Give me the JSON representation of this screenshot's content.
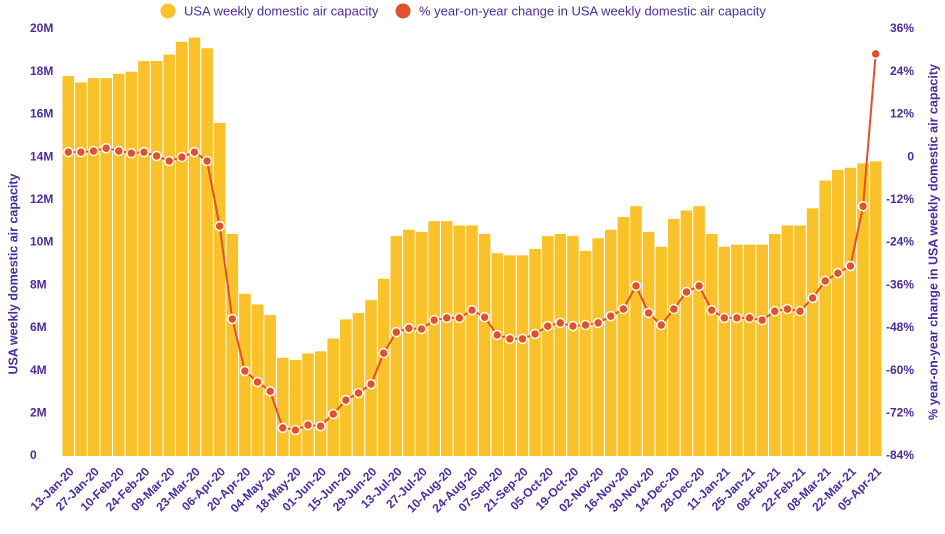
{
  "chart_data": {
    "type": "bar",
    "y_label": "USA weekly domestic air capacity",
    "y2_label": "% year-on-year change in USA weekly domestic air capacity",
    "categories": [
      "13-Jan-20",
      null,
      "27-Jan-20",
      null,
      "10-Feb-20",
      null,
      "24-Feb-20",
      null,
      "09-Mar-20",
      null,
      "23-Mar-20",
      null,
      "06-Apr-20",
      null,
      "20-Apr-20",
      null,
      "04-May-20",
      null,
      "18-May-20",
      null,
      "01-Jun-20",
      null,
      "15-Jun-20",
      null,
      "29-Jun-20",
      null,
      "13-Jul-20",
      null,
      "27-Jul-20",
      null,
      "10-Aug-20",
      null,
      "24-Aug-20",
      null,
      "07-Sep-20",
      null,
      "21-Sep-20",
      null,
      "05-Oct-20",
      null,
      "19-Oct-20",
      null,
      "02-Nov-20",
      null,
      "16-Nov-20",
      null,
      "30-Nov-20",
      null,
      "14-Dec-20",
      null,
      "28-Dec-20",
      null,
      "11-Jan-21",
      null,
      "25-Jan-21",
      null,
      "08-Feb-21",
      null,
      "22-Feb-21",
      null,
      "08-Mar-21",
      null,
      "22-Mar-21",
      null,
      "05-Apr-21"
    ],
    "series": [
      {
        "name": "USA weekly domestic air capacity",
        "color": "#f9c22b",
        "type": "bar",
        "values": [
          17800000,
          17500000,
          17700000,
          17700000,
          17900000,
          18000000,
          18500000,
          18500000,
          18800000,
          19400000,
          19600000,
          19100000,
          15600000,
          10400000,
          7600000,
          7100000,
          6600000,
          4600000,
          4500000,
          4800000,
          4900000,
          5500000,
          6400000,
          6700000,
          7300000,
          8300000,
          10300000,
          10600000,
          10500000,
          11000000,
          11000000,
          10800000,
          10800000,
          10400000,
          9500000,
          9400000,
          9400000,
          9700000,
          10300000,
          10400000,
          10300000,
          9600000,
          10200000,
          10600000,
          11200000,
          11700000,
          10500000,
          9800000,
          11100000,
          11500000,
          11700000,
          10400000,
          9800000,
          9900000,
          9900000,
          9900000,
          10400000,
          10800000,
          10800000,
          11600000,
          12900000,
          13400000,
          13500000,
          13700000,
          13800000
        ]
      },
      {
        "name": "% year-on-year change in USA weekly domestic air capacity",
        "color": "#e0522a",
        "type": "line",
        "axis": "y2",
        "values": [
          1.4,
          1.4,
          1.7,
          2.5,
          1.7,
          1.1,
          1.4,
          0.3,
          -1.1,
          0,
          1.4,
          -1.1,
          -19.4,
          -45.5,
          -60.1,
          -63.2,
          -65.8,
          -76.1,
          -76.7,
          -75.3,
          -75.6,
          -72.2,
          -68.3,
          -66.3,
          -63.8,
          -55.1,
          -49.2,
          -48.1,
          -48.3,
          -45.8,
          -45.2,
          -45.2,
          -43.0,
          -45.0,
          -50.0,
          -51.1,
          -51.1,
          -49.7,
          -47.5,
          -46.6,
          -47.5,
          -47.2,
          -46.6,
          -44.7,
          -42.7,
          -36.2,
          -43.8,
          -47.2,
          -42.7,
          -37.9,
          -36.2,
          -43.0,
          -45.2,
          -45.2,
          -45.2,
          -45.8,
          -43.3,
          -42.7,
          -43.3,
          -39.6,
          -34.8,
          -32.6,
          -30.6,
          -13.8,
          29.0
        ]
      }
    ],
    "ylim": [
      0,
      20000000
    ],
    "yticks": [
      0,
      {
        "value": 2000000,
        "label": "2M"
      },
      {
        "value": 4000000,
        "label": "4M"
      },
      {
        "value": 6000000,
        "label": "6M"
      },
      {
        "value": 8000000,
        "label": "8M"
      },
      {
        "value": 10000000,
        "label": "10M"
      },
      {
        "value": 12000000,
        "label": "12M"
      },
      {
        "value": 14000000,
        "label": "14M"
      },
      {
        "value": 16000000,
        "label": "16M"
      },
      {
        "value": 18000000,
        "label": "18M"
      },
      {
        "value": 20000000,
        "label": "20M"
      }
    ],
    "y2lim": [
      -84,
      36
    ],
    "y2ticks": [
      {
        "value": -84,
        "label": "-84%"
      },
      {
        "value": -72,
        "label": "-72%"
      },
      {
        "value": -60,
        "label": "-60%"
      },
      {
        "value": -48,
        "label": "-48%"
      },
      {
        "value": -36,
        "label": "-36%"
      },
      {
        "value": -24,
        "label": "-24%"
      },
      {
        "value": -12,
        "label": "-12%"
      },
      0,
      {
        "value": 12,
        "label": "12%"
      },
      {
        "value": 24,
        "label": "24%"
      },
      {
        "value": 36,
        "label": "36%"
      }
    ],
    "legend": "top"
  }
}
